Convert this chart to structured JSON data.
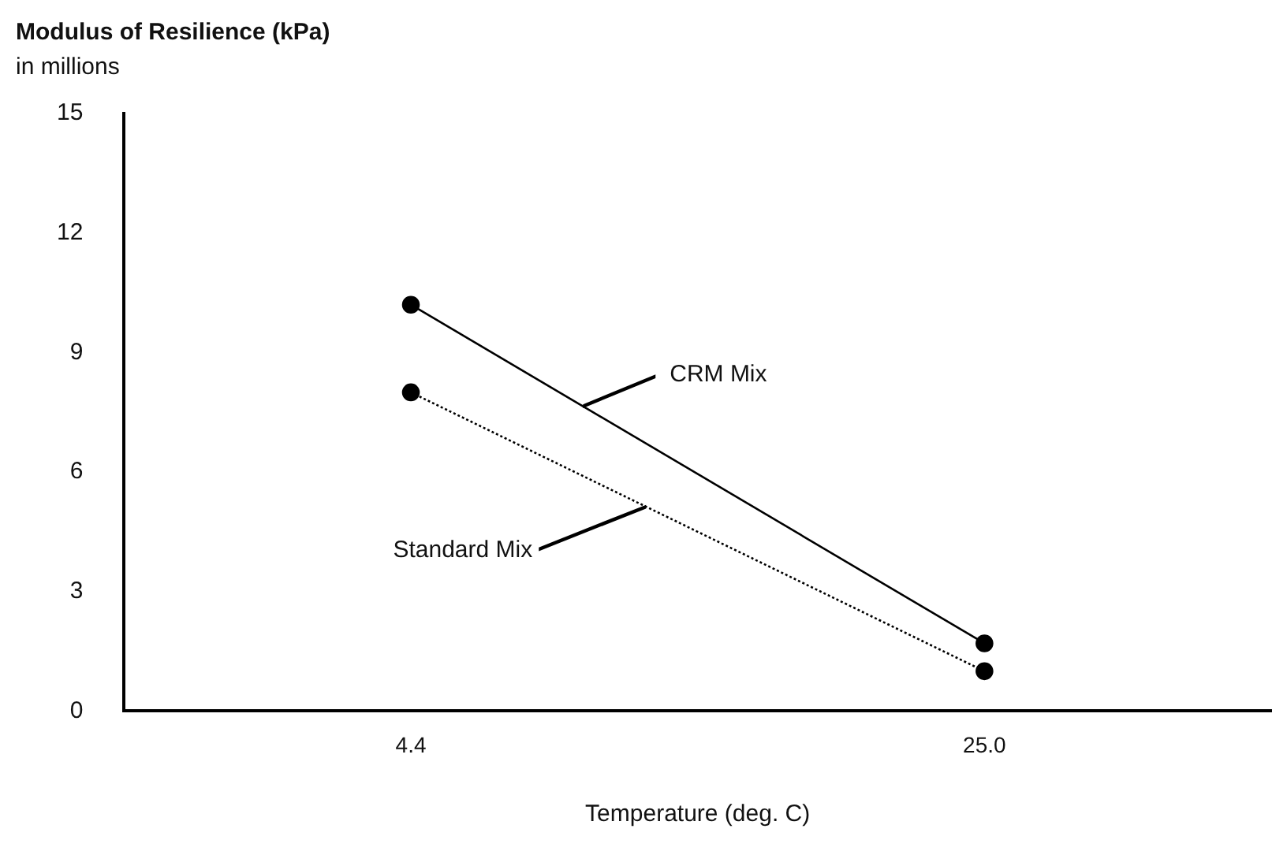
{
  "chart_data": {
    "type": "line",
    "title": "Modulus of Resilience (kPa)",
    "subtitle": "in millions",
    "xlabel": "Temperature (deg. C)",
    "categories": [
      "4.4",
      "25.0"
    ],
    "series": [
      {
        "name": "CRM Mix",
        "color": "#000000",
        "values": [
          10.2,
          1.7
        ],
        "line_style": "solid"
      },
      {
        "name": "Standard Mix",
        "color": "#000000",
        "values": [
          8.0,
          1.0
        ],
        "line_style": "dotted"
      }
    ],
    "ylim": [
      0,
      15
    ],
    "yticks": [
      0,
      3,
      6,
      9,
      12,
      15
    ],
    "grid": false,
    "legend": false,
    "marker": "circle"
  }
}
